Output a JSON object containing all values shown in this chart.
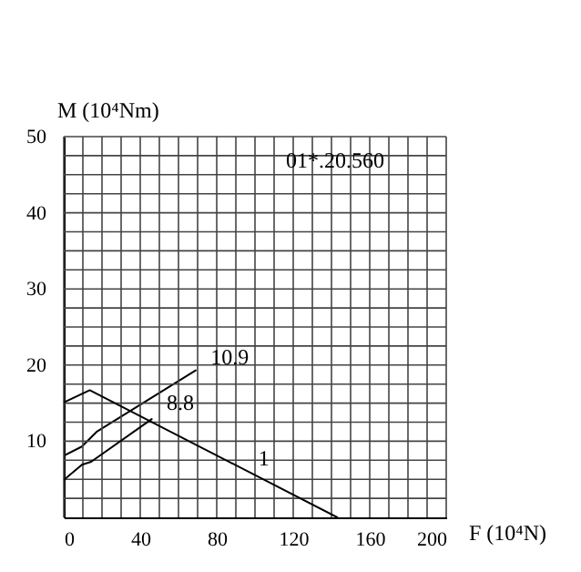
{
  "chart_data": {
    "type": "line",
    "xlabel": "F (10⁴N)",
    "ylabel": "M (10⁴Nm)",
    "xlim": [
      0,
      200
    ],
    "ylim": [
      0,
      50
    ],
    "xticks": [
      0,
      {
        "value": 10,
        "label": null
      },
      {
        "value": 20,
        "label": null
      },
      {
        "value": 30,
        "label": null
      },
      40,
      {
        "value": 50,
        "label": null
      },
      {
        "value": 60,
        "label": null
      },
      {
        "value": 70,
        "label": null
      },
      80,
      {
        "value": 90,
        "label": null
      },
      {
        "value": 100,
        "label": null
      },
      {
        "value": 110,
        "label": null
      },
      120,
      {
        "value": 130,
        "label": null
      },
      {
        "value": 140,
        "label": null
      },
      {
        "value": 150,
        "label": null
      },
      160,
      {
        "value": 170,
        "label": null
      },
      {
        "value": 180,
        "label": null
      },
      {
        "value": 190,
        "label": null
      },
      200
    ],
    "yticks": [
      {
        "value": 2.5,
        "label": null
      },
      {
        "value": 5,
        "label": null
      },
      {
        "value": 7.5,
        "label": null
      },
      10,
      {
        "value": 12.5,
        "label": null
      },
      {
        "value": 15,
        "label": null
      },
      {
        "value": 17.5,
        "label": null
      },
      20,
      {
        "value": 22.5,
        "label": null
      },
      {
        "value": 25,
        "label": null
      },
      {
        "value": 27.5,
        "label": null
      },
      30,
      {
        "value": 32.5,
        "label": null
      },
      {
        "value": 35,
        "label": null
      },
      {
        "value": 37.5,
        "label": null
      },
      40,
      {
        "value": 42.5,
        "label": null
      },
      {
        "value": 45,
        "label": null
      },
      {
        "value": 47.5,
        "label": null
      },
      50
    ],
    "grid": true,
    "line_style": "solid",
    "series": [
      {
        "color": "#000000",
        "x": [
          0,
          9.5,
          17.5,
          69
        ],
        "values": [
          8.1,
          9.3,
          11.3,
          19.3
        ]
      },
      {
        "color": "#000000",
        "x": [
          0,
          9.5,
          14.3,
          46
        ],
        "values": [
          4.9,
          6.9,
          7.3,
          12.9
        ]
      },
      {
        "color": "#000000",
        "x": [
          0,
          13.6,
          143
        ],
        "values": [
          15.1,
          16.7,
          0
        ]
      }
    ],
    "annotations": [
      {
        "text": "10.9",
        "x": 72,
        "y": 19.1
      },
      {
        "text": "8.8",
        "x": 49,
        "y": 13.2
      },
      {
        "text": "1",
        "x": 97,
        "y": 5.9
      },
      "01*.20.560"
    ]
  }
}
